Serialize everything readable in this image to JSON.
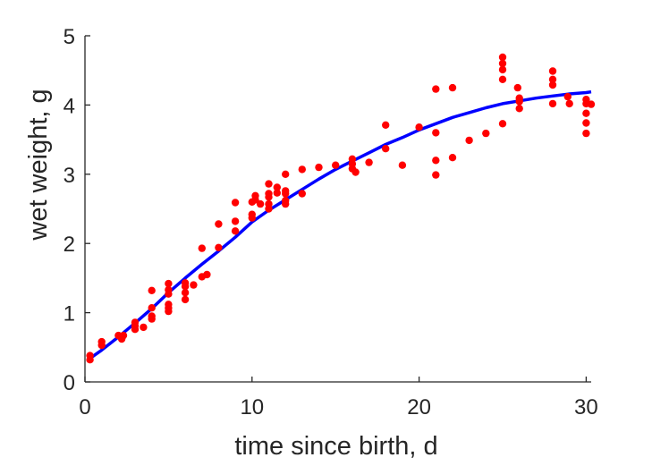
{
  "chart_data": {
    "type": "scatter",
    "title": "",
    "xlabel": "time since birth, d",
    "ylabel": "wet weight, g",
    "xlim": [
      0,
      30.3
    ],
    "ylim": [
      0,
      5
    ],
    "xticks": [
      "0",
      "10",
      "20",
      "30"
    ],
    "yticks": [
      "0",
      "1",
      "2",
      "3",
      "4",
      "5"
    ],
    "grid": false,
    "legend": "none",
    "colors": {
      "points": "#ff0000",
      "fit": "#0000ff",
      "axis": "#262626"
    },
    "series": [
      {
        "type": "scatter",
        "points": [
          [
            0.3,
            0.38
          ],
          [
            0.3,
            0.32
          ],
          [
            1,
            0.58
          ],
          [
            1,
            0.53
          ],
          [
            2,
            0.67
          ],
          [
            2.2,
            0.62
          ],
          [
            2.3,
            0.67
          ],
          [
            3,
            0.86
          ],
          [
            3,
            0.76
          ],
          [
            3,
            0.81
          ],
          [
            3.5,
            0.79
          ],
          [
            4,
            1.32
          ],
          [
            4,
            1.07
          ],
          [
            4,
            0.95
          ],
          [
            4,
            0.91
          ],
          [
            5,
            1.42
          ],
          [
            5,
            1.33
          ],
          [
            5,
            1.27
          ],
          [
            5,
            1.12
          ],
          [
            5,
            1.07
          ],
          [
            5,
            1.02
          ],
          [
            6,
            1.43
          ],
          [
            6,
            1.38
          ],
          [
            6,
            1.29
          ],
          [
            6,
            1.19
          ],
          [
            6.5,
            1.4
          ],
          [
            7,
            1.93
          ],
          [
            7,
            1.52
          ],
          [
            7.3,
            1.55
          ],
          [
            8,
            2.28
          ],
          [
            8,
            1.94
          ],
          [
            9,
            2.59
          ],
          [
            9,
            2.32
          ],
          [
            9,
            2.18
          ],
          [
            10,
            2.6
          ],
          [
            10,
            2.42
          ],
          [
            10,
            2.37
          ],
          [
            10.2,
            2.69
          ],
          [
            10.2,
            2.63
          ],
          [
            10.5,
            2.57
          ],
          [
            11,
            2.86
          ],
          [
            11,
            2.72
          ],
          [
            11,
            2.67
          ],
          [
            11,
            2.57
          ],
          [
            11,
            2.5
          ],
          [
            11.5,
            2.81
          ],
          [
            11.5,
            2.73
          ],
          [
            12,
            3.0
          ],
          [
            12,
            2.76
          ],
          [
            12,
            2.72
          ],
          [
            12,
            2.62
          ],
          [
            12,
            2.57
          ],
          [
            13,
            3.07
          ],
          [
            13,
            2.72
          ],
          [
            14,
            3.1
          ],
          [
            15,
            3.13
          ],
          [
            16,
            3.22
          ],
          [
            16,
            3.15
          ],
          [
            16,
            3.08
          ],
          [
            16.2,
            3.03
          ],
          [
            17,
            3.17
          ],
          [
            18,
            3.71
          ],
          [
            18,
            3.37
          ],
          [
            19,
            3.13
          ],
          [
            20,
            3.68
          ],
          [
            21,
            4.23
          ],
          [
            21,
            3.6
          ],
          [
            21,
            3.2
          ],
          [
            21,
            2.99
          ],
          [
            22,
            4.25
          ],
          [
            22,
            3.24
          ],
          [
            23,
            3.49
          ],
          [
            24,
            3.59
          ],
          [
            25,
            4.69
          ],
          [
            25,
            4.6
          ],
          [
            25,
            4.51
          ],
          [
            25,
            4.37
          ],
          [
            25,
            3.73
          ],
          [
            25.9,
            4.25
          ],
          [
            26,
            4.1
          ],
          [
            26,
            4.05
          ],
          [
            26,
            3.95
          ],
          [
            28,
            4.49
          ],
          [
            28,
            4.37
          ],
          [
            28,
            4.29
          ],
          [
            28,
            4.02
          ],
          [
            28.9,
            4.12
          ],
          [
            29,
            4.02
          ],
          [
            30,
            4.08
          ],
          [
            30,
            4.02
          ],
          [
            30,
            3.88
          ],
          [
            30,
            3.74
          ],
          [
            30,
            3.59
          ],
          [
            30.3,
            4.01
          ]
        ]
      },
      {
        "type": "line",
        "x": [
          0.3,
          1,
          2,
          3,
          4,
          5,
          6,
          7,
          8,
          9,
          10,
          11,
          12,
          13,
          14,
          15,
          16,
          17,
          18,
          19,
          20,
          21,
          22,
          23,
          24,
          25,
          26,
          27,
          28,
          29,
          30,
          30.3
        ],
        "y": [
          0.34,
          0.46,
          0.65,
          0.85,
          1.06,
          1.29,
          1.5,
          1.7,
          1.89,
          2.09,
          2.31,
          2.48,
          2.63,
          2.78,
          2.93,
          3.07,
          3.19,
          3.31,
          3.43,
          3.53,
          3.64,
          3.73,
          3.82,
          3.89,
          3.96,
          4.02,
          4.06,
          4.1,
          4.13,
          4.16,
          4.18,
          4.19
        ]
      }
    ]
  }
}
